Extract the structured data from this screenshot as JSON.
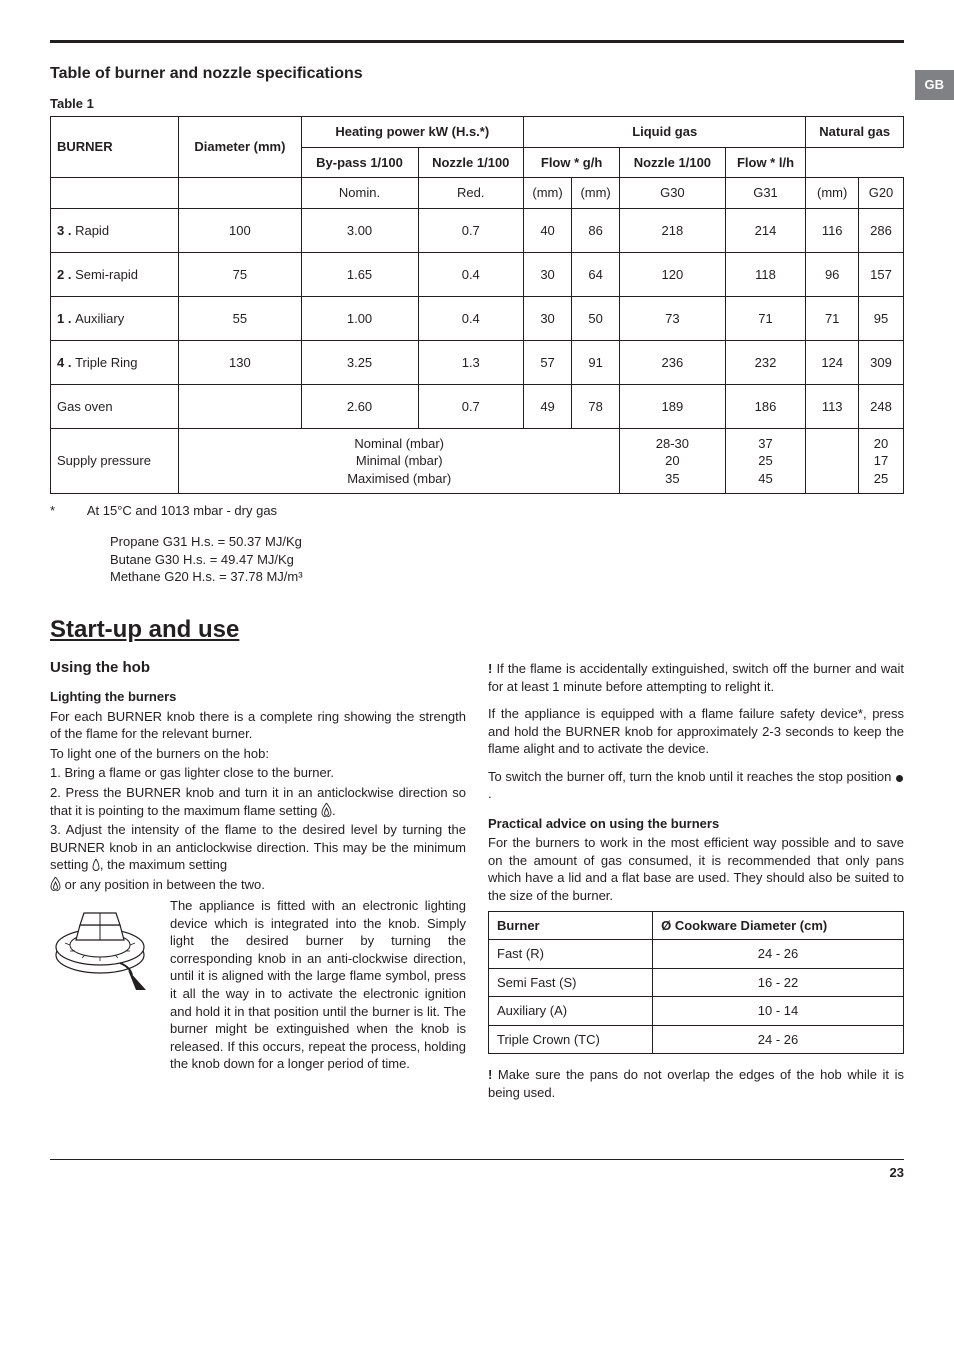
{
  "page_tab": "GB",
  "section_title": "Table of burner and nozzle specifications",
  "table1": {
    "caption": "Table 1",
    "group_headers": {
      "liquid": "Liquid gas",
      "natural": "Natural gas"
    },
    "col_headers": {
      "burner": "BURNER",
      "diameter": "Diameter (mm)",
      "heating": "Heating power kW (H.s.*)",
      "bypass": "By-pass 1/100",
      "nozzle_liq": "Nozzle 1/100",
      "flow_liq": "Flow * g/h",
      "nozzle_nat": "Nozzle 1/100",
      "flow_nat": "Flow * l/h"
    },
    "sub_headers": {
      "nomin": "Nomin.",
      "red": "Red.",
      "mm1": "(mm)",
      "mm2": "(mm)",
      "g30": "G30",
      "g31": "G31",
      "mm3": "(mm)",
      "g20": "G20"
    },
    "rows": [
      {
        "name": "3 . Rapid",
        "dia": "100",
        "nomin": "3.00",
        "red": "0.7",
        "bypass": "40",
        "noz_l": "86",
        "g30": "218",
        "g31": "214",
        "noz_n": "116",
        "g20": "286"
      },
      {
        "name": "2 . Semi-rapid",
        "dia": "75",
        "nomin": "1.65",
        "red": "0.4",
        "bypass": "30",
        "noz_l": "64",
        "g30": "120",
        "g31": "118",
        "noz_n": "96",
        "g20": "157"
      },
      {
        "name": "1 . Auxiliary",
        "dia": "55",
        "nomin": "1.00",
        "red": "0.4",
        "bypass": "30",
        "noz_l": "50",
        "g30": "73",
        "g31": "71",
        "noz_n": "71",
        "g20": "95"
      },
      {
        "name": "4 . Triple Ring",
        "dia": "130",
        "nomin": "3.25",
        "red": "1.3",
        "bypass": "57",
        "noz_l": "91",
        "g30": "236",
        "g31": "232",
        "noz_n": "124",
        "g20": "309"
      },
      {
        "name": "Gas oven",
        "dia": "",
        "nomin": "2.60",
        "red": "0.7",
        "bypass": "49",
        "noz_l": "78",
        "g30": "189",
        "g31": "186",
        "noz_n": "113",
        "g20": "248"
      }
    ],
    "supply": {
      "label": "Supply pressure",
      "nominal": "Nominal (mbar)",
      "minimal": "Minimal (mbar)",
      "maximised": "Maximised (mbar)",
      "liq_g30": "28-30\n20\n35",
      "liq_g31": "37\n25\n45",
      "nat_g20": "20\n17\n25"
    }
  },
  "footnote": {
    "star": "*",
    "line1": "At 15°C and 1013 mbar - dry gas",
    "line2": "Propane G31    H.s. = 50.37 MJ/Kg",
    "line3": "Butane G30      H.s. = 49.47 MJ/Kg",
    "line4": "Methane G20   H.s. = 37.78 MJ/m³"
  },
  "startup_heading": "Start-up and use",
  "left": {
    "using_hob": "Using the hob",
    "lighting_head": "Lighting the burners",
    "p1": "For each BURNER knob there is a complete ring showing the strength of the flame for the relevant burner.",
    "p2": "To light one of the burners on the hob:",
    "p3": "1. Bring a flame or gas lighter close to the burner.",
    "p4": "2. Press the BURNER knob and turn it in an anticlockwise direction so that it is pointing to the maximum flame setting ",
    "p4b": ".",
    "p5": "3. Adjust the intensity of the flame to the desired level by turning the BURNER knob in an anticlockwise direction. This may be the minimum setting ",
    "p5b": ", the maximum setting ",
    "p5c": " or any position in between the two.",
    "p6": "The appliance is fitted with an electronic lighting device which is integrated into the knob. Simply light the desired burner by turning the corresponding knob in an anti-clockwise direction, until it is aligned with the large flame symbol, press it all the way in to activate the electronic ignition and hold it in that position until the burner is lit. The burner might be extinguished when the knob is released. If this occurs, repeat the process, holding the knob down for a longer period of time."
  },
  "right": {
    "p1a": "!",
    "p1b": " If the flame is accidentally extinguished, switch off the burner and wait for at least 1 minute before attempting to relight it.",
    "p2": "If the appliance is equipped with a flame failure safety device*, press and hold the BURNER knob for approximately 2-3 seconds to keep the flame alight and to activate the device.",
    "p3a": "To switch the burner off, turn the knob until it reaches the stop position ",
    "p3b": ".",
    "practical_head": "Practical advice on using the burners",
    "p4": "For the burners to work in the most efficient way possible and to save on the amount of gas consumed, it is recommended that only pans which have a lid and a flat base are used. They should also be suited to the size of the burner.",
    "cookware": {
      "col1": "Burner",
      "col2": "Ø Cookware Diameter (cm)",
      "rows": [
        {
          "name": "Fast (R)",
          "dia": "24 - 26"
        },
        {
          "name": "Semi Fast (S)",
          "dia": "16 - 22"
        },
        {
          "name": "Auxiliary (A)",
          "dia": "10 - 14"
        },
        {
          "name": "Triple Crown (TC)",
          "dia": "24 - 26"
        }
      ]
    },
    "p5a": "!",
    "p5b": " Make sure the pans do not overlap the edges of the hob while it is being used."
  },
  "page_number": "23"
}
